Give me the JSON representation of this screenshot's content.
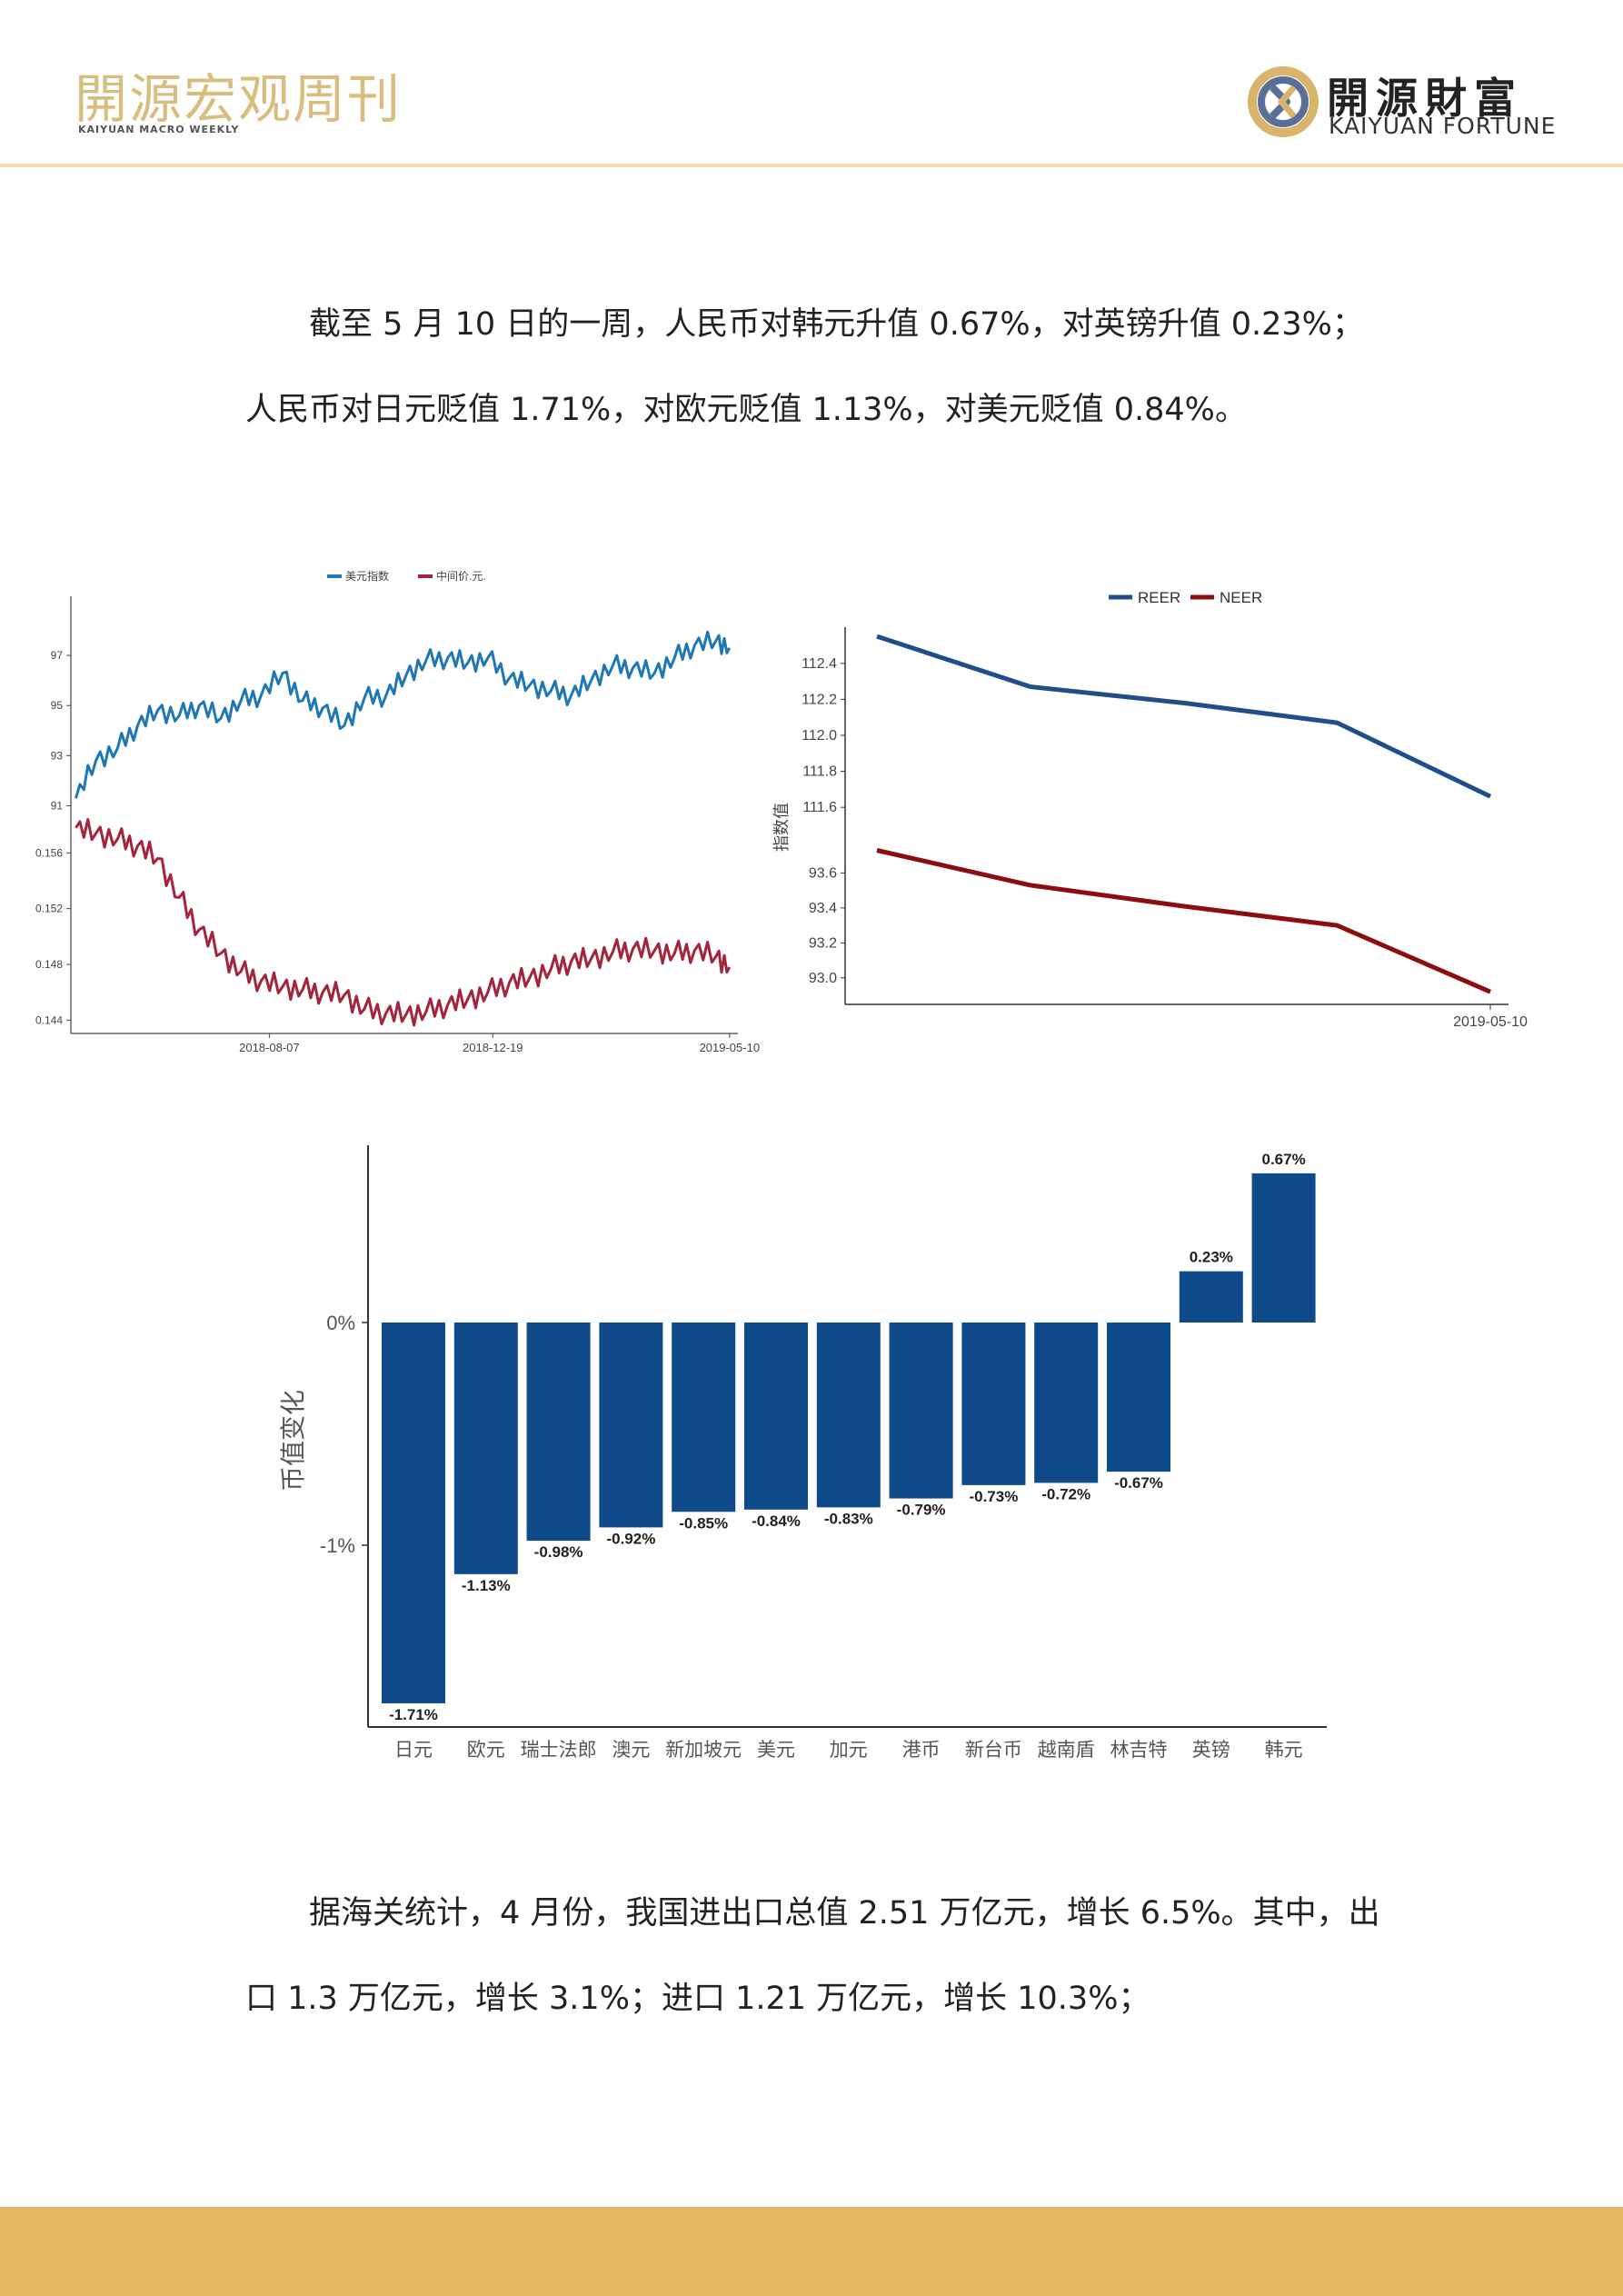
{
  "header": {
    "title": "開源宏观周刊",
    "subtitle": "KAIYUAN MACRO WEEKLY",
    "logo_cn": "開源財富",
    "logo_en": "KAIYUAN FORTUNE",
    "logo_icon": "kaiyuan-logo-icon"
  },
  "paragraph1": "截至 5 月 10 日的一周，人民币对韩元升值 0.67%，对英镑升值 0.23%；人民币对日元贬值 1.71%，对欧元贬值 1.13%，对美元贬值 0.84%。",
  "paragraph2": "据海关统计，4 月份，我国进出口总值 2.51 万亿元，增长 6.5%。其中，出口 1.3 万亿元，增长 3.1%；进口 1.21 万亿元，增长 10.3%；",
  "chart_data": [
    {
      "type": "line",
      "legend": [
        "美元指数",
        "中间价.元."
      ],
      "legend_position": "top-center",
      "x_ticks": [
        "2018-08-07",
        "2018-12-19",
        "2019-05-10"
      ],
      "x_range": [
        "2018-04-10",
        "2019-05-15"
      ],
      "panels": [
        {
          "series_name": "美元指数",
          "color": "#1f78b4",
          "y_ticks": [
            "91",
            "93",
            "95",
            "97"
          ],
          "ylim": [
            90.8,
            98.2
          ],
          "x": [
            "2018-04-13",
            "2018-04-25",
            "2018-05-08",
            "2018-05-20",
            "2018-06-01",
            "2018-06-14",
            "2018-06-26",
            "2018-07-09",
            "2018-07-21",
            "2018-08-02",
            "2018-08-15",
            "2018-08-27",
            "2018-09-08",
            "2018-09-21",
            "2018-10-03",
            "2018-10-16",
            "2018-10-28",
            "2018-11-09",
            "2018-11-22",
            "2018-12-04",
            "2018-12-16",
            "2018-12-29",
            "2019-01-10",
            "2019-01-23",
            "2019-02-04",
            "2019-02-16",
            "2019-03-01",
            "2019-03-13",
            "2019-03-26",
            "2019-04-07",
            "2019-04-19",
            "2019-05-02",
            "2019-05-10"
          ],
          "values": [
            91.3,
            92.8,
            93.3,
            94.2,
            94.8,
            94.6,
            95.0,
            94.5,
            95.2,
            95.4,
            96.3,
            95.2,
            94.9,
            94.2,
            95.3,
            95.4,
            96.2,
            96.8,
            96.9,
            96.7,
            96.9,
            96.1,
            95.8,
            95.6,
            95.4,
            96.0,
            96.6,
            96.5,
            96.3,
            96.9,
            97.4,
            97.6,
            97.3
          ]
        },
        {
          "series_name": "中间价.元.",
          "color": "#a4243b",
          "y_ticks": [
            "0.144",
            "0.148",
            "0.152",
            "0.156"
          ],
          "ylim": [
            0.1435,
            0.1585
          ],
          "x": [
            "2018-04-13",
            "2018-04-25",
            "2018-05-08",
            "2018-05-20",
            "2018-06-01",
            "2018-06-14",
            "2018-06-26",
            "2018-07-09",
            "2018-07-21",
            "2018-08-02",
            "2018-08-15",
            "2018-08-27",
            "2018-09-08",
            "2018-09-21",
            "2018-10-03",
            "2018-10-16",
            "2018-10-28",
            "2018-11-09",
            "2018-11-22",
            "2018-12-04",
            "2018-12-16",
            "2018-12-29",
            "2019-01-10",
            "2019-01-23",
            "2019-02-04",
            "2019-02-16",
            "2019-03-01",
            "2019-03-13",
            "2019-03-26",
            "2019-04-07",
            "2019-04-19",
            "2019-05-02",
            "2019-05-10"
          ],
          "values": [
            0.1578,
            0.1574,
            0.157,
            0.1565,
            0.1556,
            0.1528,
            0.1505,
            0.1488,
            0.1475,
            0.1468,
            0.1464,
            0.1462,
            0.146,
            0.1458,
            0.1448,
            0.1445,
            0.1444,
            0.1446,
            0.1451,
            0.1455,
            0.146,
            0.1467,
            0.147,
            0.1477,
            0.1482,
            0.1484,
            0.1489,
            0.1491,
            0.149,
            0.1488,
            0.149,
            0.1486,
            0.1478
          ]
        }
      ]
    },
    {
      "type": "line",
      "legend": [
        "REER",
        "NEER"
      ],
      "legend_position": "top-center",
      "ylabel": "指数值",
      "x_tick": "2019-05-10",
      "panels": [
        {
          "series_name": "REER",
          "color": "#1f4e89",
          "y_ticks": [
            "111.6",
            "111.8",
            "112.0",
            "112.2",
            "112.4"
          ],
          "ylim": [
            111.5,
            112.5
          ],
          "values": [
            112.55,
            112.27,
            112.18,
            112.07,
            111.66
          ]
        },
        {
          "series_name": "NEER",
          "color": "#8b0d10",
          "y_ticks": [
            "93.0",
            "93.2",
            "93.4",
            "93.6"
          ],
          "ylim": [
            92.9,
            93.8
          ],
          "values": [
            93.73,
            93.53,
            93.41,
            93.3,
            92.92
          ]
        }
      ]
    },
    {
      "type": "bar",
      "ylabel": "币值变化",
      "y_ticks": [
        "0%",
        "-1%"
      ],
      "ylim": [
        -1.8,
        0.78
      ],
      "color": "#0f4a8a",
      "categories": [
        "日元",
        "欧元",
        "瑞士法郎",
        "澳元",
        "新加坡元",
        "美元",
        "加元",
        "港币",
        "新台币",
        "越南盾",
        "林吉特",
        "英镑",
        "韩元"
      ],
      "values": [
        -1.71,
        -1.13,
        -0.98,
        -0.92,
        -0.85,
        -0.84,
        -0.83,
        -0.79,
        -0.73,
        -0.72,
        -0.67,
        0.23,
        0.67
      ],
      "labels": [
        "-1.71%",
        "-1.13%",
        "-0.98%",
        "-0.92%",
        "-0.85%",
        "-0.84%",
        "-0.83%",
        "-0.79%",
        "-0.73%",
        "-0.72%",
        "-0.67%",
        "0.23%",
        "0.67%"
      ]
    }
  ]
}
